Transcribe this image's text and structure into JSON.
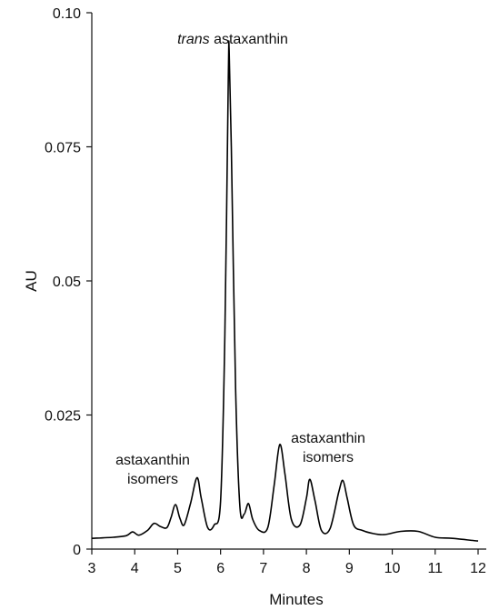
{
  "chart_data": {
    "type": "line",
    "title": "",
    "xlabel": "Minutes",
    "ylabel": "AU",
    "xlim": [
      3,
      12
    ],
    "ylim": [
      0,
      0.1
    ],
    "x_ticks": [
      "3",
      "4",
      "5",
      "6",
      "7",
      "8",
      "9",
      "10",
      "11",
      "12"
    ],
    "y_ticks": [
      "0",
      "0.025",
      "0.05",
      "0.075",
      "0.10"
    ],
    "grid": false,
    "series": [
      {
        "x": [
          3.0,
          3.5,
          3.8,
          3.95,
          4.1,
          4.3,
          4.45,
          4.6,
          4.75,
          4.85,
          4.95,
          5.05,
          5.15,
          5.3,
          5.45,
          5.55,
          5.7,
          5.85,
          6.0,
          6.1,
          6.18,
          6.2,
          6.25,
          6.35,
          6.45,
          6.55,
          6.65,
          6.75,
          6.9,
          7.1,
          7.25,
          7.38,
          7.5,
          7.65,
          7.85,
          8.0,
          8.08,
          8.2,
          8.35,
          8.55,
          8.75,
          8.85,
          8.95,
          9.1,
          9.3,
          9.5,
          9.8,
          10.2,
          10.6,
          11.0,
          11.4,
          12.0
        ],
        "y": [
          0.002,
          0.0022,
          0.0025,
          0.0032,
          0.0026,
          0.0035,
          0.0048,
          0.0042,
          0.004,
          0.006,
          0.0083,
          0.0058,
          0.0045,
          0.0085,
          0.0133,
          0.0095,
          0.004,
          0.0045,
          0.009,
          0.04,
          0.088,
          0.093,
          0.075,
          0.03,
          0.008,
          0.0065,
          0.0085,
          0.0055,
          0.0035,
          0.004,
          0.012,
          0.0195,
          0.014,
          0.0055,
          0.0045,
          0.0095,
          0.013,
          0.009,
          0.0035,
          0.0038,
          0.0105,
          0.0128,
          0.0095,
          0.0045,
          0.0035,
          0.003,
          0.0027,
          0.0033,
          0.0033,
          0.0022,
          0.002,
          0.0015
        ]
      }
    ],
    "annotations": [
      {
        "text_italic": "trans",
        "text": " astaxanthin"
      },
      {
        "lines": [
          "astaxanthin",
          "isomers"
        ]
      },
      {
        "lines": [
          "astaxanthin",
          "isomers"
        ]
      }
    ]
  }
}
